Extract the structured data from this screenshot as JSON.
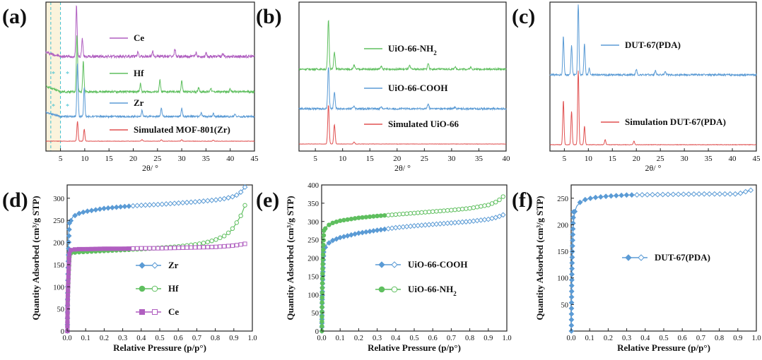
{
  "chart_data": [
    {
      "panel": "(a)",
      "type": "line",
      "xlabel": "2θ/ °",
      "xlim": [
        2,
        45
      ],
      "xticks": [
        5,
        10,
        15,
        20,
        25,
        30,
        35,
        40,
        45
      ],
      "series": [
        {
          "name": "Ce",
          "color": "#b05fc0",
          "peaks": [
            [
              8.3,
              1.0
            ],
            [
              9.5,
              0.35
            ],
            [
              21.0,
              0.1
            ],
            [
              24.0,
              0.1
            ],
            [
              28.6,
              0.15
            ],
            [
              33.0,
              0.08
            ],
            [
              35.0,
              0.06
            ],
            [
              38.5,
              0.05
            ]
          ]
        },
        {
          "name": "Hf",
          "color": "#5fbf5f",
          "peaks": [
            [
              8.4,
              1.0
            ],
            [
              9.7,
              0.55
            ],
            [
              21.5,
              0.15
            ],
            [
              25.5,
              0.2
            ],
            [
              30.0,
              0.2
            ],
            [
              33.5,
              0.08
            ],
            [
              36.0,
              0.07
            ],
            [
              40.0,
              0.05
            ]
          ]
        },
        {
          "name": "Zr",
          "color": "#5b9bd5",
          "peaks": [
            [
              8.5,
              1.0
            ],
            [
              9.9,
              0.55
            ],
            [
              21.8,
              0.12
            ],
            [
              25.8,
              0.15
            ],
            [
              30.0,
              0.15
            ],
            [
              34.0,
              0.07
            ],
            [
              36.5,
              0.06
            ],
            [
              41.0,
              0.05
            ]
          ]
        },
        {
          "name": "Simulated MOF-801(Zr)",
          "color": "#e05050",
          "peaks": [
            [
              8.5,
              1.0
            ],
            [
              9.9,
              0.6
            ],
            [
              21.8,
              0.08
            ],
            [
              25.8,
              0.08
            ],
            [
              30.0,
              0.08
            ],
            [
              36.5,
              0.05
            ]
          ]
        }
      ],
      "highlight_range": [
        2,
        5
      ]
    },
    {
      "panel": "(b)",
      "type": "line",
      "xlabel": "2θ/ °",
      "xlim": [
        2,
        40
      ],
      "xticks": [
        5,
        10,
        15,
        20,
        25,
        30,
        35,
        40
      ],
      "series": [
        {
          "name": "UiO-66-NH2",
          "label_main": "UiO-66-NH",
          "label_sub": "2",
          "color": "#5fbf5f",
          "peaks": [
            [
              7.4,
              1.0
            ],
            [
              8.5,
              0.35
            ],
            [
              12.1,
              0.08
            ],
            [
              17.1,
              0.06
            ],
            [
              22.3,
              0.07
            ],
            [
              25.7,
              0.12
            ],
            [
              30.6,
              0.05
            ],
            [
              33.5,
              0.04
            ]
          ]
        },
        {
          "name": "UiO-66-COOH",
          "color": "#5b9bd5",
          "peaks": [
            [
              7.4,
              1.0
            ],
            [
              8.5,
              0.4
            ],
            [
              12.1,
              0.07
            ],
            [
              17.1,
              0.05
            ],
            [
              25.7,
              0.12
            ],
            [
              30.6,
              0.04
            ]
          ]
        },
        {
          "name": "Simulated UiO-66",
          "color": "#e05050",
          "peaks": [
            [
              7.4,
              1.0
            ],
            [
              8.5,
              0.5
            ],
            [
              12.1,
              0.05
            ]
          ]
        }
      ]
    },
    {
      "panel": "(c)",
      "type": "line",
      "xlabel": "2θ/ °",
      "xlim": [
        2,
        45
      ],
      "xticks": [
        5,
        10,
        15,
        20,
        25,
        30,
        35,
        40,
        45
      ],
      "series": [
        {
          "name": "DUT-67(PDA)",
          "color": "#5b9bd5",
          "peaks": [
            [
              4.8,
              0.55
            ],
            [
              6.5,
              0.42
            ],
            [
              7.9,
              1.0
            ],
            [
              9.2,
              0.45
            ],
            [
              10.2,
              0.1
            ],
            [
              20.0,
              0.08
            ],
            [
              24.0,
              0.06
            ],
            [
              26.0,
              0.05
            ]
          ]
        },
        {
          "name": "Simulation DUT-67(PDA)",
          "color": "#e05050",
          "peaks": [
            [
              4.8,
              0.6
            ],
            [
              6.5,
              0.45
            ],
            [
              7.9,
              1.0
            ],
            [
              9.2,
              0.25
            ],
            [
              13.5,
              0.07
            ],
            [
              19.5,
              0.05
            ]
          ]
        }
      ]
    },
    {
      "panel": "(d)",
      "type": "line",
      "xlabel": "Relative Pressure (p/p°)",
      "ylabel": "Quantity Adsorbed (cm³/g STP)",
      "xlim": [
        0,
        1.0
      ],
      "ylim": [
        0,
        330
      ],
      "xticks": [
        0.0,
        0.1,
        0.2,
        0.3,
        0.4,
        0.5,
        0.6,
        0.7,
        0.8,
        0.9,
        1.0
      ],
      "yticks": [
        0,
        50,
        100,
        150,
        200,
        250,
        300
      ],
      "series": [
        {
          "name": "Zr",
          "color": "#5b9bd5",
          "marker": "diamond",
          "x": [
            0.0,
            0.003,
            0.008,
            0.015,
            0.03,
            0.06,
            0.1,
            0.2,
            0.3,
            0.4,
            0.5,
            0.6,
            0.7,
            0.8,
            0.85,
            0.9,
            0.93,
            0.96
          ],
          "y": [
            0,
            150,
            220,
            245,
            258,
            265,
            270,
            277,
            281,
            284,
            286,
            289,
            292,
            296,
            299,
            304,
            310,
            325
          ]
        },
        {
          "name": "Hf",
          "color": "#5fbf5f",
          "marker": "circle",
          "x": [
            0.0,
            0.002,
            0.006,
            0.012,
            0.03,
            0.06,
            0.1,
            0.2,
            0.3,
            0.4,
            0.5,
            0.6,
            0.7,
            0.75,
            0.8,
            0.85,
            0.88,
            0.9,
            0.92,
            0.94,
            0.96
          ],
          "y": [
            0,
            140,
            168,
            174,
            177,
            178,
            179,
            181,
            183,
            185,
            188,
            191,
            196,
            200,
            206,
            215,
            225,
            235,
            248,
            262,
            284
          ]
        },
        {
          "name": "Ce",
          "color": "#b05fc0",
          "marker": "square",
          "x": [
            0.0,
            0.002,
            0.006,
            0.012,
            0.03,
            0.06,
            0.1,
            0.2,
            0.3,
            0.4,
            0.5,
            0.6,
            0.7,
            0.8,
            0.9,
            0.96
          ],
          "y": [
            0,
            150,
            178,
            182,
            184,
            185,
            185,
            186,
            186,
            187,
            187,
            188,
            189,
            190,
            193,
            197
          ]
        }
      ]
    },
    {
      "panel": "(e)",
      "type": "line",
      "xlabel": "Relative Pressure (p/p°)",
      "ylabel": "Quantity Adsorbed (cm³/g STP)",
      "xlim": [
        0,
        1.0
      ],
      "ylim": [
        0,
        400
      ],
      "xticks": [
        0.0,
        0.1,
        0.2,
        0.3,
        0.4,
        0.5,
        0.6,
        0.7,
        0.8,
        0.9,
        1.0
      ],
      "yticks": [
        0,
        50,
        100,
        150,
        200,
        250,
        300,
        350,
        400
      ],
      "series": [
        {
          "name": "UiO-66-COOH",
          "color": "#5b9bd5",
          "marker": "diamond",
          "x": [
            0.0,
            0.002,
            0.006,
            0.012,
            0.03,
            0.06,
            0.1,
            0.2,
            0.3,
            0.4,
            0.5,
            0.6,
            0.7,
            0.8,
            0.9,
            0.95,
            0.98
          ],
          "y": [
            0,
            150,
            200,
            222,
            238,
            248,
            256,
            268,
            276,
            283,
            288,
            292,
            296,
            300,
            306,
            312,
            318
          ]
        },
        {
          "name": "UiO-66-NH2",
          "label_main": "UiO-66-NH",
          "label_sub": "2",
          "color": "#5fbf5f",
          "marker": "circle",
          "x": [
            0.0,
            0.002,
            0.006,
            0.012,
            0.03,
            0.06,
            0.1,
            0.2,
            0.3,
            0.4,
            0.5,
            0.6,
            0.7,
            0.8,
            0.9,
            0.95,
            0.98
          ],
          "y": [
            0,
            200,
            255,
            275,
            288,
            296,
            302,
            310,
            315,
            319,
            323,
            327,
            331,
            336,
            345,
            355,
            368
          ]
        }
      ]
    },
    {
      "panel": "(f)",
      "type": "line",
      "xlabel": "Relative Pressure (p/p°)",
      "ylabel": "Quantity Adsorbed (cm³/g STP)",
      "xlim": [
        0,
        1.0
      ],
      "ylim": [
        0,
        275
      ],
      "xticks": [
        0.0,
        0.1,
        0.2,
        0.3,
        0.4,
        0.5,
        0.6,
        0.7,
        0.8,
        0.9,
        1.0
      ],
      "yticks": [
        50,
        100,
        150,
        200,
        250
      ],
      "series": [
        {
          "name": "DUT-67(PDA)",
          "color": "#5b9bd5",
          "marker": "diamond",
          "x": [
            0.0,
            0.001,
            0.002,
            0.004,
            0.006,
            0.01,
            0.015,
            0.02,
            0.03,
            0.05,
            0.08,
            0.12,
            0.2,
            0.3,
            0.5,
            0.7,
            0.9,
            0.97
          ],
          "y": [
            0,
            20,
            60,
            110,
            150,
            190,
            212,
            225,
            235,
            243,
            248,
            251,
            254,
            256,
            257,
            258,
            258,
            265
          ]
        }
      ]
    }
  ]
}
